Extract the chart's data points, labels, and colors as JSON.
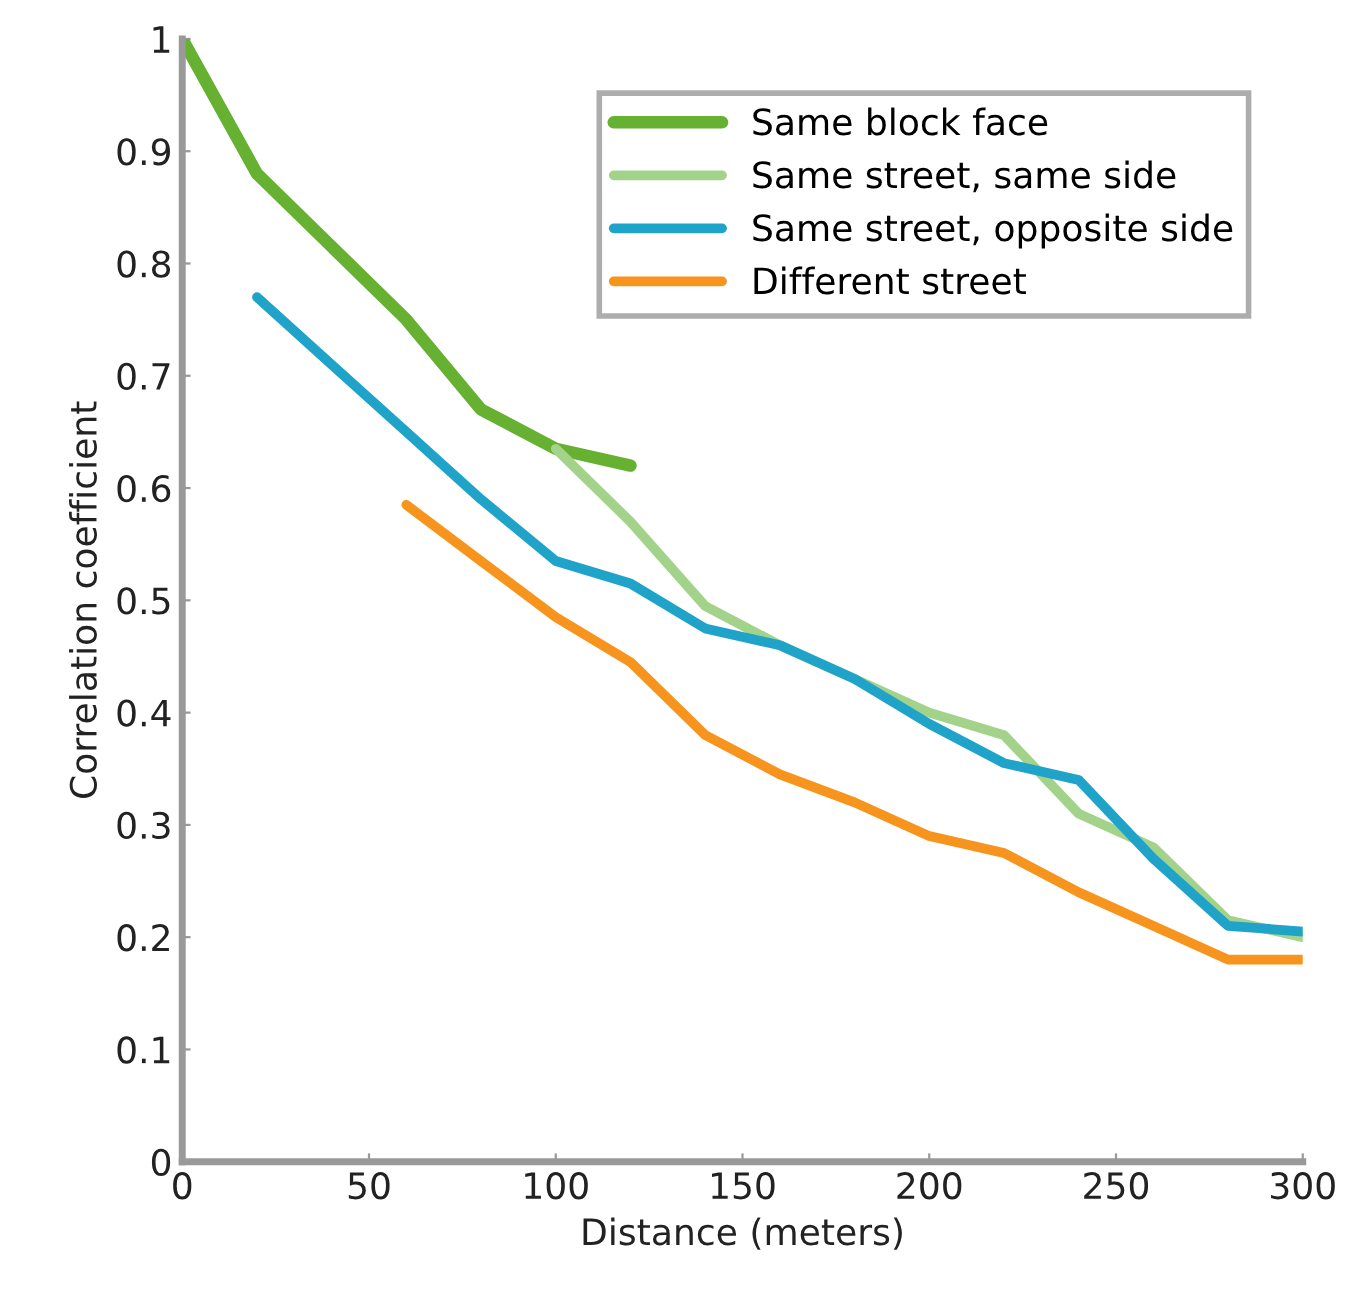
{
  "chart_data": {
    "type": "line",
    "xlabel": "Distance (meters)",
    "ylabel": "Correlation coefficient",
    "xlim": [
      0,
      300
    ],
    "ylim": [
      0,
      1
    ],
    "xticks": [
      0,
      50,
      100,
      150,
      200,
      250,
      300
    ],
    "yticks": [
      0,
      0.1,
      0.2,
      0.3,
      0.4,
      0.5,
      0.6,
      0.7,
      0.8,
      0.9,
      1
    ],
    "grid": false,
    "legend": "top right",
    "marker": "none",
    "line_style": "solid",
    "series": [
      {
        "name": "Same block face",
        "color": "#66b032",
        "x": [
          0,
          20,
          40,
          60,
          80,
          100,
          120
        ],
        "values": [
          1.0,
          0.88,
          0.815,
          0.75,
          0.67,
          0.635,
          0.62
        ]
      },
      {
        "name": "Same street, same side",
        "color": "#a3d38a",
        "x": [
          100,
          120,
          140,
          160,
          180,
          200,
          220,
          240,
          260,
          280,
          300
        ],
        "values": [
          0.635,
          0.57,
          0.495,
          0.46,
          0.43,
          0.4,
          0.38,
          0.31,
          0.28,
          0.215,
          0.2
        ]
      },
      {
        "name": "Same street, opposite side",
        "color": "#1fa3c8",
        "x": [
          20,
          40,
          60,
          80,
          100,
          120,
          140,
          160,
          180,
          200,
          220,
          240,
          260,
          280,
          300
        ],
        "values": [
          0.77,
          0.71,
          0.65,
          0.59,
          0.535,
          0.515,
          0.475,
          0.46,
          0.43,
          0.39,
          0.355,
          0.34,
          0.27,
          0.21,
          0.205
        ]
      },
      {
        "name": "Different street",
        "color": "#f7941d",
        "x": [
          60,
          80,
          100,
          120,
          140,
          160,
          180,
          200,
          220,
          240,
          260,
          280,
          300
        ],
        "values": [
          0.585,
          0.535,
          0.485,
          0.445,
          0.38,
          0.345,
          0.32,
          0.29,
          0.275,
          0.24,
          0.21,
          0.18,
          0.18
        ]
      }
    ]
  }
}
